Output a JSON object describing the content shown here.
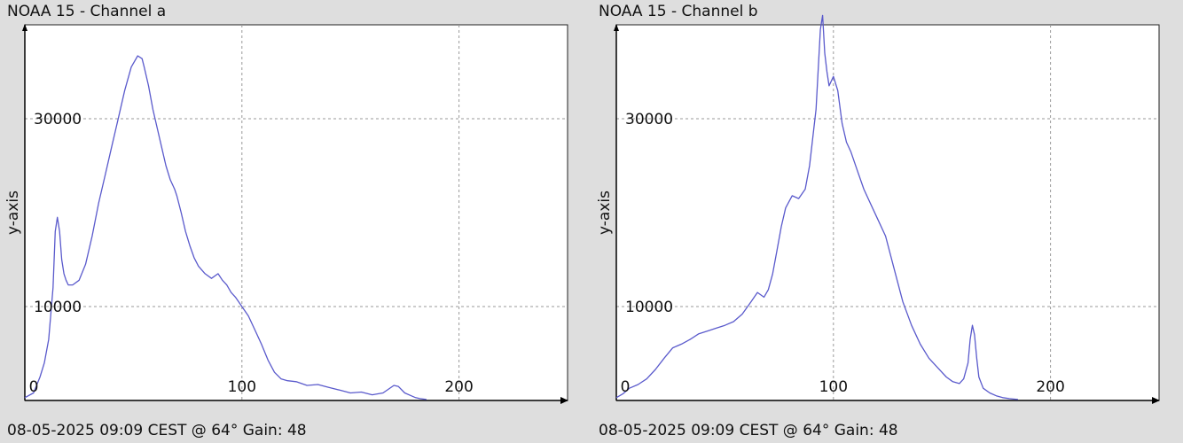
{
  "chart_data": [
    {
      "type": "line",
      "title": "NOAA 15 - Channel a",
      "ylabel": "y-axis",
      "footer": "08-05-2025 09:09 CEST @ 64° Gain: 48",
      "xlim": [
        0,
        250
      ],
      "ylim": [
        0,
        40000
      ],
      "x_ticks": [
        0,
        100,
        200
      ],
      "x_tick_labels": [
        "0",
        "100",
        "200"
      ],
      "y_ticks": [
        10000,
        30000
      ],
      "y_tick_labels": [
        "10000",
        "30000"
      ],
      "grid": true,
      "line_color": "#5a5acc",
      "series": [
        {
          "x": [
            0,
            4,
            7,
            9,
            11,
            13,
            14,
            15,
            16,
            17,
            18,
            19,
            20,
            22,
            25,
            28,
            31,
            34,
            37,
            40,
            43,
            46,
            49,
            52,
            54,
            55,
            57,
            59,
            61,
            63,
            65,
            67,
            69,
            70,
            72,
            74,
            76,
            78,
            80,
            83,
            86,
            89,
            91,
            93,
            95,
            97,
            100,
            103,
            106,
            109,
            112,
            115,
            118,
            121,
            125,
            130,
            135,
            140,
            145,
            150,
            155,
            160,
            165,
            170,
            172,
            175,
            178,
            180,
            182,
            185
          ],
          "y": [
            300,
            800,
            2500,
            4000,
            6500,
            12000,
            18000,
            19500,
            18000,
            15000,
            13500,
            12800,
            12300,
            12300,
            12800,
            14500,
            17500,
            21000,
            24000,
            27000,
            30000,
            33000,
            35500,
            36700,
            36400,
            35500,
            33500,
            31000,
            29000,
            27000,
            25000,
            23500,
            22500,
            21800,
            20000,
            18000,
            16500,
            15200,
            14300,
            13500,
            13000,
            13500,
            12800,
            12300,
            11500,
            11000,
            10000,
            9000,
            7500,
            6000,
            4300,
            3000,
            2300,
            2100,
            2000,
            1600,
            1700,
            1400,
            1100,
            800,
            900,
            600,
            800,
            1600,
            1500,
            800,
            500,
            300,
            200,
            100
          ]
        }
      ]
    },
    {
      "type": "line",
      "title": "NOAA 15 - Channel b",
      "ylabel": "y-axis",
      "footer": "08-05-2025 09:09 CEST @ 64° Gain: 48",
      "xlim": [
        0,
        250
      ],
      "ylim": [
        0,
        40000
      ],
      "x_ticks": [
        0,
        100,
        200
      ],
      "x_tick_labels": [
        "0",
        "100",
        "200"
      ],
      "y_ticks": [
        10000,
        30000
      ],
      "y_tick_labels": [
        "10000",
        "30000"
      ],
      "grid": true,
      "line_color": "#5a5acc",
      "series": [
        {
          "x": [
            0,
            3,
            6,
            10,
            14,
            18,
            22,
            26,
            30,
            34,
            38,
            42,
            46,
            50,
            54,
            58,
            62,
            65,
            68,
            70,
            72,
            74,
            76,
            78,
            81,
            84,
            87,
            89,
            92,
            94,
            95,
            96,
            97,
            98,
            100,
            102,
            104,
            106,
            108,
            111,
            114,
            117,
            120,
            124,
            128,
            132,
            136,
            140,
            144,
            148,
            152,
            155,
            158,
            160,
            162,
            163,
            164,
            165,
            166,
            167,
            169,
            172,
            175,
            178,
            181,
            185
          ],
          "y": [
            300,
            700,
            1300,
            1700,
            2300,
            3300,
            4500,
            5600,
            6000,
            6500,
            7100,
            7400,
            7700,
            8000,
            8400,
            9200,
            10500,
            11500,
            11000,
            11800,
            13500,
            16000,
            18500,
            20500,
            21800,
            21500,
            22500,
            25000,
            31000,
            39500,
            41000,
            37000,
            35000,
            33500,
            34500,
            33000,
            29500,
            27500,
            26500,
            24500,
            22500,
            21000,
            19500,
            17500,
            14000,
            10500,
            8000,
            6000,
            4500,
            3500,
            2500,
            2000,
            1800,
            2300,
            4000,
            6500,
            8000,
            7000,
            4500,
            2500,
            1300,
            800,
            500,
            300,
            200,
            100
          ]
        }
      ]
    }
  ]
}
